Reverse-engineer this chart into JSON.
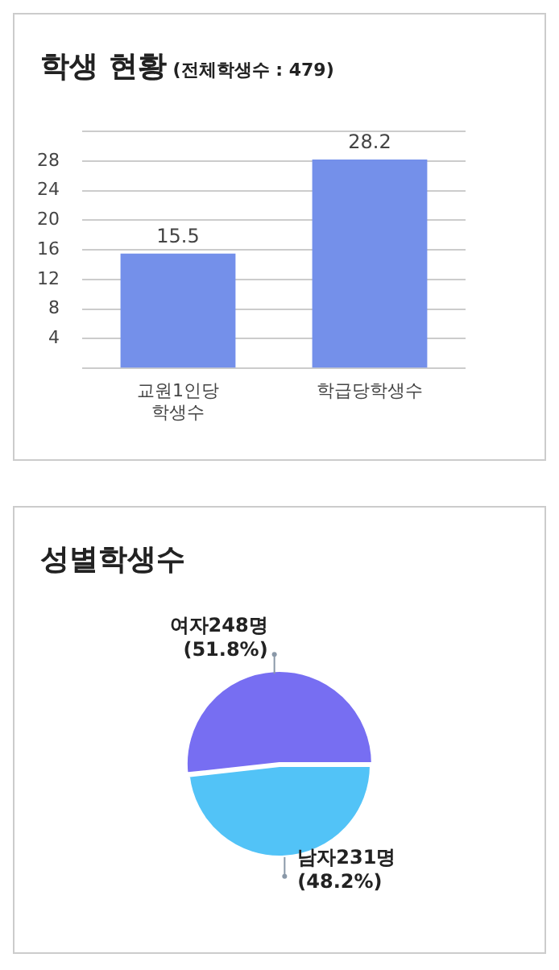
{
  "chart_data": [
    {
      "type": "bar",
      "title": "학생 현황",
      "subtitle": "(전체학생수 : 479)",
      "categories": [
        "교원1인당\n학생수",
        "학급당학생수"
      ],
      "values": [
        15.5,
        28.2
      ],
      "color": "#7490ea",
      "ylim": [
        0,
        32
      ],
      "yticks": [
        {
          "value": 0,
          "label": null
        },
        4,
        8,
        12,
        16,
        20,
        24,
        28,
        {
          "value": 32,
          "label": null
        }
      ],
      "grid": "y",
      "data_labels": true
    },
    {
      "type": "pie",
      "title": "성별학생수",
      "categories": [
        "여자",
        "남자"
      ],
      "values": [
        248,
        231
      ],
      "colors": [
        "#776ef2",
        "#52c3f7"
      ],
      "value_labels": [
        "248명 (51.8%)",
        "231명 (48.2%)"
      ]
    }
  ]
}
